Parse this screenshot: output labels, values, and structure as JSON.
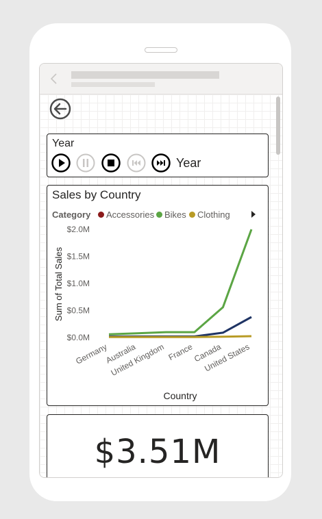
{
  "year_slicer": {
    "title": "Year",
    "field_label": "Year",
    "controls": [
      "play-icon",
      "pause-icon",
      "stop-icon",
      "skip-back-icon",
      "skip-forward-icon"
    ]
  },
  "chart": {
    "title": "Sales by Country",
    "legend_title": "Category",
    "legend": [
      "Accessories",
      "Bikes",
      "Clothing"
    ],
    "y_ticks": [
      "$2.0M",
      "$1.5M",
      "$1.0M",
      "$0.5M",
      "$0.0M"
    ],
    "ylabel": "Sum of Total Sales",
    "xlabel": "Country",
    "colors": {
      "Accessories": "#1f3464",
      "Bikes": "#5ba544",
      "Clothing": "#b89b25",
      "Accessories_legend": "#8b1a1a"
    }
  },
  "chart_data": {
    "type": "line",
    "title": "Sales by Country",
    "xlabel": "Country",
    "ylabel": "Sum of Total Sales",
    "categories": [
      "Germany",
      "Australia",
      "United Kingdom",
      "France",
      "Canada",
      "United States"
    ],
    "ylim": [
      0,
      2000000
    ],
    "series": [
      {
        "name": "Accessories",
        "values": [
          20000,
          20000,
          20000,
          20000,
          90000,
          380000
        ]
      },
      {
        "name": "Bikes",
        "values": [
          60000,
          80000,
          100000,
          100000,
          560000,
          2000000
        ]
      },
      {
        "name": "Clothing",
        "values": [
          10000,
          10000,
          10000,
          10000,
          15000,
          25000
        ]
      }
    ],
    "legend_position": "top",
    "grid": false
  },
  "kpi": {
    "value": "$3.51M"
  }
}
